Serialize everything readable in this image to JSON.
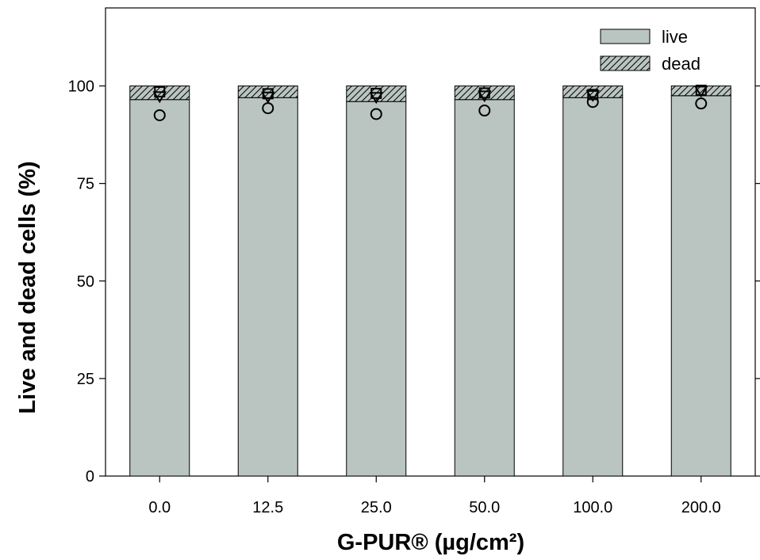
{
  "chart_data": {
    "type": "bar",
    "stacked": true,
    "xlabel": "G-PUR® (µg/cm²)",
    "ylabel": "Live and dead cells (%)",
    "ylim": [
      0,
      120
    ],
    "yticks": [
      0,
      25,
      50,
      75,
      100
    ],
    "yticklabels": [
      "0",
      "25",
      "50",
      "75",
      "100"
    ],
    "categories": [
      "0.0",
      "12.5",
      "25.0",
      "50.0",
      "100.0",
      "200.0"
    ],
    "series": [
      {
        "name": "live",
        "values": [
          96.5,
          97.0,
          96.0,
          96.5,
          97.0,
          97.5
        ],
        "fill": "#bac5c1",
        "pattern": "solid"
      },
      {
        "name": "dead",
        "values": [
          3.5,
          3.0,
          4.0,
          3.5,
          3.0,
          2.5
        ],
        "fill": "#bac5c1",
        "pattern": "hatch"
      }
    ],
    "replicates": {
      "circle": [
        92.5,
        94.3,
        92.8,
        93.7,
        95.9,
        95.5
      ],
      "triangle_down": [
        97.4,
        97.3,
        97.2,
        97.6,
        97.7,
        98.8
      ],
      "square": [
        98.5,
        98.0,
        98.1,
        98.2,
        97.8,
        98.9
      ]
    },
    "legend_position": "top-right",
    "grid": false
  }
}
